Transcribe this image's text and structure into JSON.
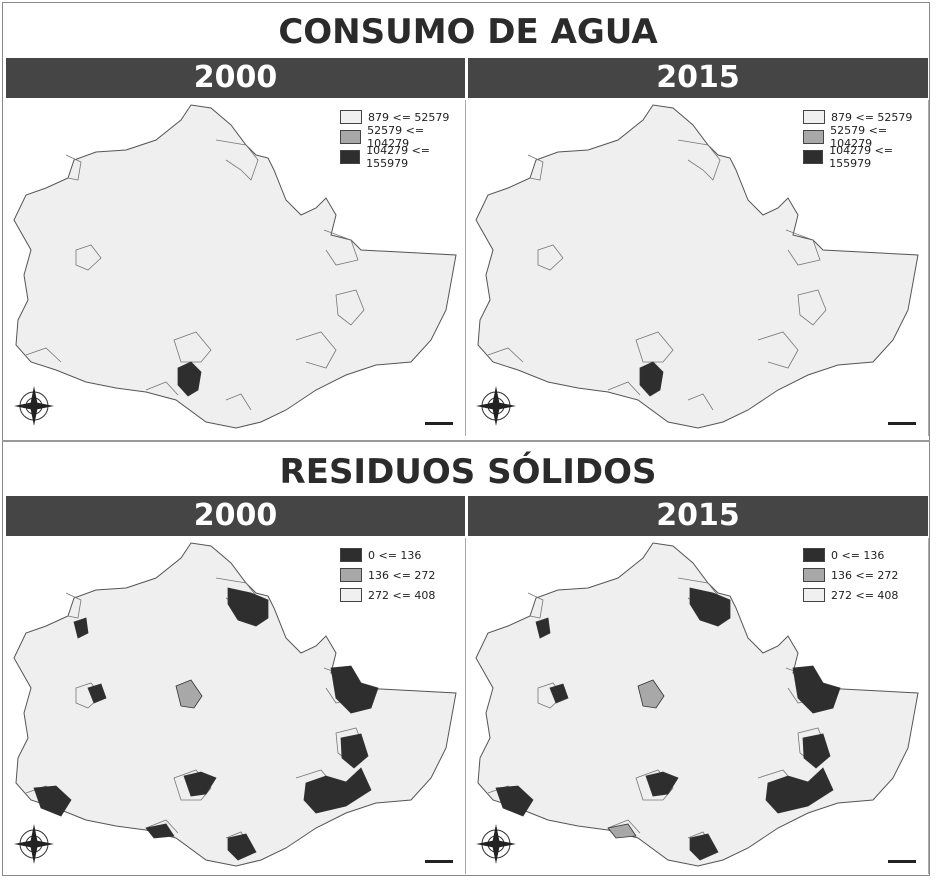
{
  "sections": [
    {
      "title": "CONSUMO DE AGUA",
      "years": [
        "2000",
        "2015"
      ],
      "legend": [
        {
          "label": "879 <= 52579",
          "color": "#f0f0f0"
        },
        {
          "label": "52579 <= 104279",
          "color": "#a8a8a8"
        },
        {
          "label": "104279 <= 155979",
          "color": "#2e2e2e"
        }
      ]
    },
    {
      "title": "RESIDUOS SÓLIDOS",
      "years": [
        "2000",
        "2015"
      ],
      "legend": [
        {
          "label": "0 <= 136",
          "color": "#2e2e2e"
        },
        {
          "label": "136 <= 272",
          "color": "#a8a8a8"
        },
        {
          "label": "272 <= 408",
          "color": "#f0f0f0"
        }
      ]
    }
  ],
  "colors": {
    "bar": "#454545",
    "land": "#efefef",
    "dark": "#2e2e2e",
    "mid": "#a8a8a8"
  },
  "icons": [
    "compass-rose-icon",
    "scale-bar-icon"
  ]
}
